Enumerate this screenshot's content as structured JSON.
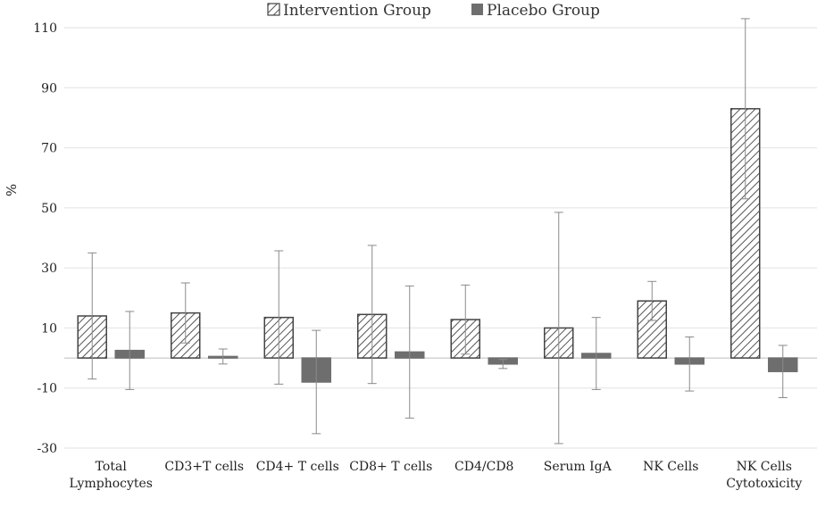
{
  "chart_data": {
    "type": "bar",
    "title": "",
    "xlabel": "",
    "ylabel": "%",
    "ylim": [
      -30,
      110
    ],
    "yticks": [
      -30,
      -10,
      10,
      30,
      50,
      70,
      90,
      110
    ],
    "grid": true,
    "legend_position": "top",
    "categories": [
      [
        "Total",
        "Lymphocytes"
      ],
      [
        "CD3+T cells"
      ],
      [
        "CD4+ T cells"
      ],
      [
        "CD8+ T cells"
      ],
      [
        "CD4/CD8"
      ],
      [
        "Serum IgA"
      ],
      [
        "NK Cells"
      ],
      [
        "NK Cells",
        "Cytotoxicity"
      ]
    ],
    "series": [
      {
        "name": "Intervention Group",
        "pattern": "hatched",
        "color": "#ffffff",
        "stroke": "#444444",
        "values": [
          14.0,
          15.0,
          13.5,
          14.5,
          12.8,
          10.0,
          19.0,
          83.0
        ],
        "error": [
          21.0,
          10.0,
          22.2,
          23.0,
          11.5,
          38.5,
          6.5,
          30.0
        ]
      },
      {
        "name": "Placebo Group",
        "pattern": "solid",
        "color": "#6e6e6e",
        "stroke": "#6e6e6e",
        "values": [
          2.5,
          0.5,
          -8.0,
          2.0,
          -2.0,
          1.5,
          -2.0,
          -4.5
        ],
        "error": [
          13.0,
          2.5,
          17.2,
          22.0,
          1.5,
          12.0,
          9.0,
          8.7
        ]
      }
    ]
  }
}
